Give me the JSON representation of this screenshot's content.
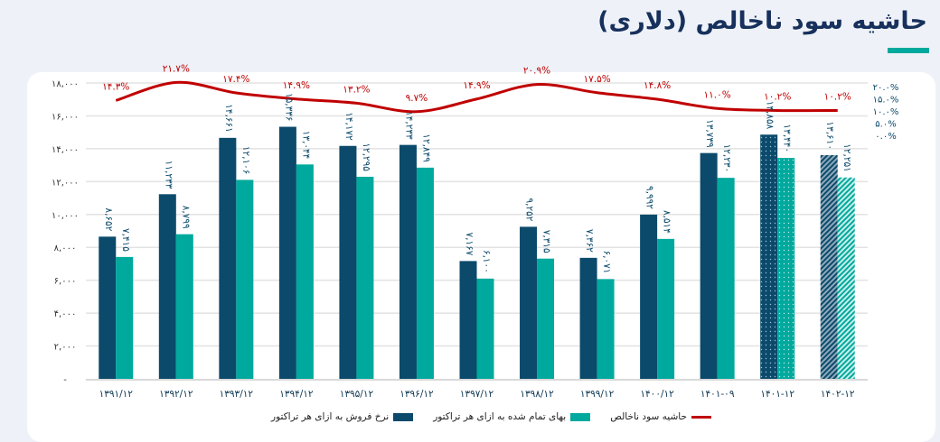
{
  "title": "حاشیه سود ناخالص (دلاری)",
  "colors": {
    "sales": "#0b4a6b",
    "cost": "#00a99d",
    "margin": "#c00000",
    "title": "#17305c"
  },
  "chart_data": {
    "type": "bar",
    "title": "حاشیه سود ناخالص (دلاری)",
    "categories": [
      "۱۳۹۱/۱۲",
      "۱۳۹۲/۱۲",
      "۱۳۹۳/۱۲",
      "۱۳۹۴/۱۲",
      "۱۳۹۵/۱۲",
      "۱۳۹۶/۱۲",
      "۱۳۹۷/۱۲",
      "۱۳۹۸/۱۲",
      "۱۳۹۹/۱۲",
      "۱۴۰۰/۱۲",
      "۱۴۰۱-۰۹",
      "۱۴۰۱-۱۲",
      "۱۴۰۲-۱۲"
    ],
    "ylim": [
      0,
      18000
    ],
    "y2lim": [
      0,
      20
    ],
    "yticks": [
      "-",
      "۲,۰۰۰",
      "۴,۰۰۰",
      "۶,۰۰۰",
      "۸,۰۰۰",
      "۱۰,۰۰۰",
      "۱۲,۰۰۰",
      "۱۴,۰۰۰",
      "۱۶,۰۰۰",
      "۱۸,۰۰۰"
    ],
    "y2ticks": [
      "۰.۰%",
      "۵.۰%",
      "۱۰.۰%",
      "۱۵.۰%",
      "۲۰.۰%"
    ],
    "series": [
      {
        "name": "نرخ فروش به ازای هر تراکتور",
        "type": "bar",
        "values": [
          8652,
          11233,
          14661,
          15336,
          14172,
          14233,
          7167,
          9252,
          7362,
          9992,
          13739,
          14858,
          13610
        ],
        "labels": [
          "۸,۶۵۲",
          "۱۱,۲۳۳",
          "۱۴,۶۶۱",
          "۱۵,۳۳۶",
          "۱۴,۱۷۲",
          "۱۴,۲۳۳",
          "۷,۱۶۷",
          "۹,۲۵۲",
          "۷,۳۶۲",
          "۹,۹۹۲",
          "۱۳,۷۳۹",
          "۱۴,۸۵۸",
          "۱۳,۶۱۰"
        ]
      },
      {
        "name": "بهای تمام شده به ازای هر تراکتور",
        "type": "bar",
        "values": [
          7415,
          8799,
          12106,
          13044,
          12295,
          12849,
          6100,
          7315,
          6071,
          8514,
          12230,
          13440,
          12251
        ],
        "labels": [
          "۷,۴۱۵",
          "۸,۷۹۹",
          "۱۲,۱۰۶",
          "۱۳,۰۴۴",
          "۱۲,۲۹۵",
          "۱۲,۸۴۹",
          "۶,۱۰۰",
          "۷,۳۱۵",
          "۶,۰۷۱",
          "۸,۵۱۴",
          "۱۲,۲۳۰",
          "۱۳,۴۴۰",
          "۱۲,۲۵۱"
        ]
      },
      {
        "name": "حاشیه سود ناخالص",
        "type": "line",
        "values": [
          14.3,
          21.7,
          17.4,
          14.9,
          13.2,
          9.7,
          14.9,
          20.9,
          17.5,
          14.8,
          11.0,
          10.2,
          10.2
        ],
        "labels": [
          "۱۴.۳%",
          "۲۱.۷%",
          "۱۷.۴%",
          "۱۴.۹%",
          "۱۳.۲%",
          "۹.۷%",
          "۱۴.۹%",
          "۲۰.۹%",
          "۱۷.۵%",
          "۱۴.۸%",
          "۱۱.۰%",
          "۱۰.۲%",
          "۱۰.۲%"
        ]
      }
    ],
    "pattern_note_categories": {
      "dotted": "۱۴۰۱-۱۲",
      "hatched": "۱۴۰۲-۱۲"
    },
    "legend": "bottom",
    "grid": true
  }
}
